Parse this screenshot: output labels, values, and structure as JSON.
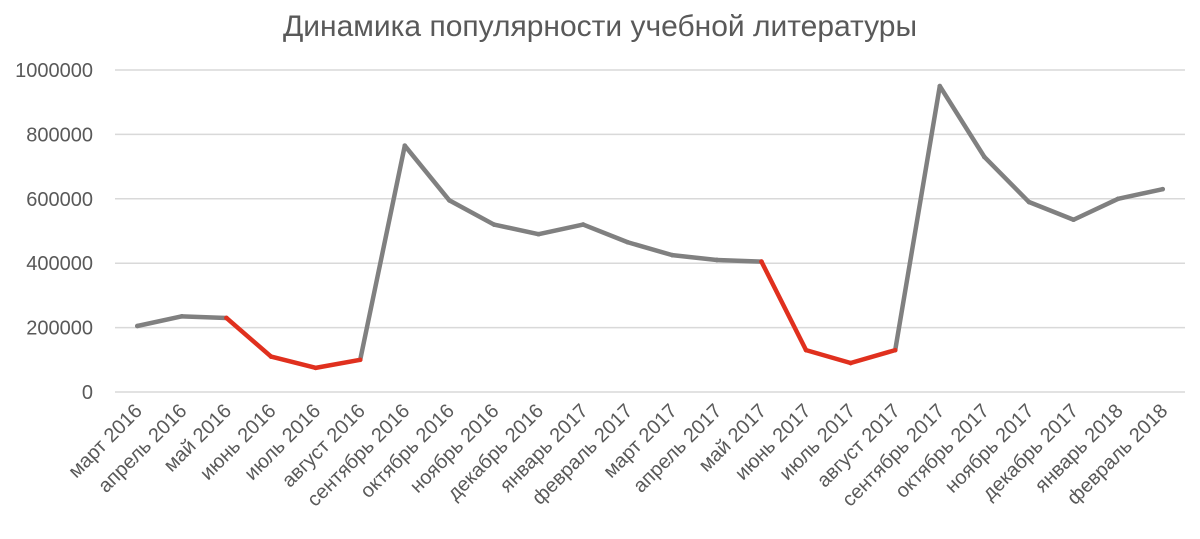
{
  "chart_data": {
    "type": "line",
    "title": "Динамика популярности учебной литературы",
    "xlabel": "",
    "ylabel": "",
    "ylim": [
      0,
      1000000
    ],
    "yticks": [
      0,
      200000,
      400000,
      600000,
      800000,
      1000000
    ],
    "ytick_labels": [
      "0",
      "200000",
      "400000",
      "600000",
      "800000",
      "1000000"
    ],
    "grid": true,
    "legend": "none",
    "categories": [
      "март 2016",
      "апрель 2016",
      "май 2016",
      "июнь 2016",
      "июль 2016",
      "август 2016",
      "сентябрь 2016",
      "октябрь 2016",
      "ноябрь 2016",
      "декабрь 2016",
      "январь 2017",
      "февраль 2017",
      "март 2017",
      "апрель 2017",
      "май 2017",
      "июнь 2017",
      "июль 2017",
      "август 2017",
      "сентябрь 2017",
      "октябрь 2017",
      "ноябрь 2017",
      "декабрь 2017",
      "январь 2018",
      "февраль 2018"
    ],
    "series": [
      {
        "values": [
          205000,
          235000,
          230000,
          110000,
          75000,
          100000,
          765000,
          595000,
          520000,
          490000,
          520000,
          465000,
          425000,
          410000,
          405000,
          130000,
          90000,
          130000,
          950000,
          730000,
          590000,
          535000,
          600000,
          630000
        ]
      }
    ],
    "highlight_segments": [
      [
        2,
        5
      ],
      [
        14,
        17
      ]
    ],
    "colors": {
      "line": "#808080",
      "highlight": "#e0301e",
      "grid": "#d9d9d9",
      "text": "#595959"
    }
  }
}
